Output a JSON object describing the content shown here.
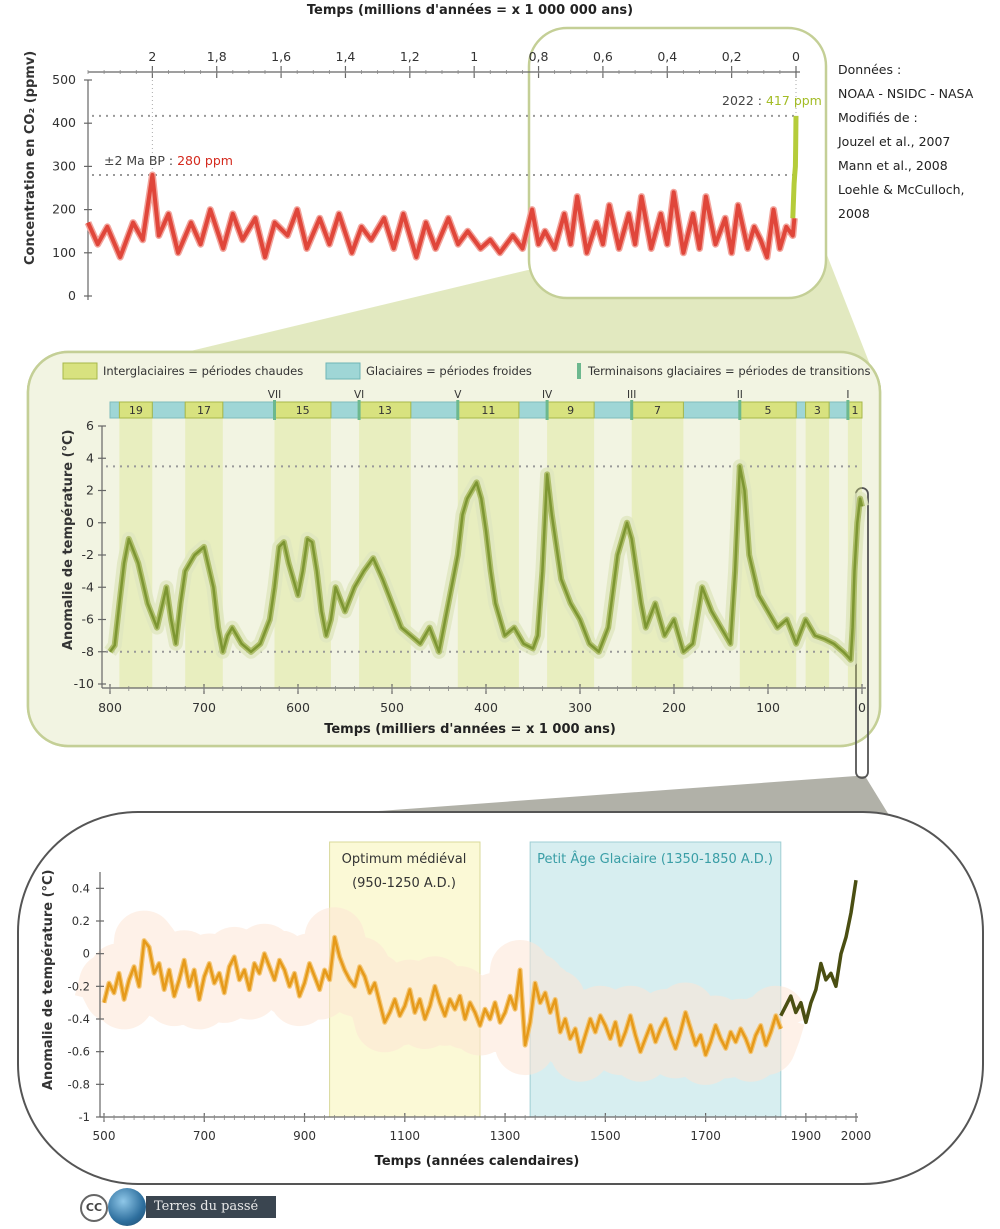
{
  "top_chart": {
    "title": "Temps (millions d'années = x 1 000 000 ans)",
    "ylabel": "Concentration en CO₂ (ppmv)",
    "x_ticks": [
      "2",
      "1,8",
      "1,6",
      "1,4",
      "1,2",
      "1",
      "0,8",
      "0,6",
      "0,4",
      "0,2",
      "0"
    ],
    "y_ticks": [
      "0",
      "100",
      "200",
      "300",
      "400",
      "500"
    ],
    "annotation_2ma_prefix": "±2 Ma BP : ",
    "annotation_2ma_value": "280 ppm",
    "annotation_2022_prefix": "2022 : ",
    "annotation_2022_value": "417 ppm"
  },
  "sources": {
    "line1": "Données :",
    "line2": "NOAA - NSIDC - NASA",
    "line3": "Modifiés de :",
    "line4": "Jouzel et al., 2007",
    "line5": "Mann et al., 2008",
    "line6": "Loehle & McCulloch, 2008"
  },
  "middle_chart": {
    "legend_interglacial": "Interglaciaires = périodes chaudes",
    "legend_glacial": "Glaciaires = périodes froides",
    "legend_terminations": "Terminaisons glaciaires = périodes de transitions",
    "ylabel": "Anomalie de température (°C)",
    "xlabel": "Temps (milliers d'années = x 1 000 ans)",
    "x_ticks": [
      "800",
      "700",
      "600",
      "500",
      "400",
      "300",
      "200",
      "100",
      "0"
    ],
    "y_ticks": [
      "6",
      "4",
      "2",
      "0",
      "-2",
      "-4",
      "-6",
      "-8",
      "-10"
    ],
    "mis_labels": [
      "19",
      "17",
      "15",
      "13",
      "11",
      "9",
      "7",
      "5",
      "3",
      "1"
    ],
    "termination_labels": [
      "VII",
      "VI",
      "V",
      "IV",
      "III",
      "II",
      "I"
    ]
  },
  "bottom_chart": {
    "ylabel": "Anomalie de température (°C)",
    "xlabel": "Temps (années calendaires)",
    "x_ticks": [
      "500",
      "700",
      "900",
      "1100",
      "1300",
      "1500",
      "1700",
      "1900",
      "2000"
    ],
    "y_ticks": [
      "0.4",
      "0.2",
      "0",
      "-0.2",
      "-0.4",
      "-0.6",
      "-0.8",
      "-1"
    ],
    "mwp_line1": "Optimum médiéval",
    "mwp_line2": "(950-1250 A.D.)",
    "lia_label": "Petit Âge Glaciaire (1350-1850 A.D.)"
  },
  "logo": {
    "cc": "CC",
    "text": "Terres du passé"
  },
  "colors": {
    "co2_line": "#e0463a",
    "co2_recent": "#b5cc3a",
    "temp_line": "#7d9632",
    "interglacial_fill": "#d8e27f",
    "glacial_fill": "#9fd6d6",
    "termination": "#6db88e",
    "holocene_line": "#e69a1a",
    "instrumental_line": "#4a4e12",
    "mwp_fill": "#fbf9d6",
    "lia_fill": "#d7eef0",
    "panel_bg": "#f2f4e2",
    "panel_border": "#c4cf96"
  },
  "chart_data": [
    {
      "type": "line",
      "title": "",
      "xlabel": "Temps (millions d'années = x 1 000 000 ans)",
      "ylabel": "Concentration en CO₂ (ppmv)",
      "xlim": [
        2.2,
        0
      ],
      "ylim": [
        0,
        500
      ],
      "series": [
        {
          "x": [
            2.2,
            2.17,
            2.14,
            2.1,
            2.06,
            2.03,
            2.0,
            1.98,
            1.95,
            1.92,
            1.88,
            1.85,
            1.82,
            1.78,
            1.75,
            1.72,
            1.68,
            1.65,
            1.62,
            1.58,
            1.55,
            1.52,
            1.48,
            1.45,
            1.42,
            1.38,
            1.35,
            1.32,
            1.28,
            1.25,
            1.22,
            1.18,
            1.15,
            1.12,
            1.08,
            1.05,
            1.02,
            0.98,
            0.95,
            0.92,
            0.88,
            0.85,
            0.82,
            0.8,
            0.78,
            0.75,
            0.72,
            0.7,
            0.68,
            0.65,
            0.62,
            0.6,
            0.58,
            0.55,
            0.52,
            0.5,
            0.48,
            0.45,
            0.42,
            0.4,
            0.38,
            0.35,
            0.32,
            0.3,
            0.28,
            0.25,
            0.22,
            0.2,
            0.18,
            0.15,
            0.13,
            0.11,
            0.09,
            0.07,
            0.05,
            0.03,
            0.01,
            0.005
          ],
          "y": [
            170,
            120,
            160,
            90,
            170,
            130,
            280,
            140,
            190,
            100,
            170,
            120,
            200,
            110,
            190,
            130,
            180,
            90,
            170,
            140,
            200,
            110,
            180,
            120,
            190,
            100,
            160,
            130,
            180,
            110,
            190,
            90,
            170,
            110,
            180,
            120,
            150,
            110,
            130,
            100,
            140,
            110,
            200,
            120,
            150,
            110,
            190,
            120,
            230,
            100,
            170,
            120,
            210,
            110,
            190,
            120,
            230,
            110,
            190,
            120,
            240,
            100,
            190,
            110,
            230,
            120,
            180,
            100,
            210,
            110,
            160,
            130,
            90,
            200,
            110,
            160,
            140,
            180
          ]
        },
        {
          "x": [
            0.01,
            0.006,
            0.004,
            0.002,
            0.001,
            0.0
          ],
          "y": [
            180,
            260,
            280,
            300,
            350,
            417
          ]
        }
      ]
    },
    {
      "type": "line",
      "title": "",
      "xlabel": "Temps (milliers d'années = x 1 000 ans)",
      "ylabel": "Anomalie de température (°C)",
      "xlim": [
        800,
        0
      ],
      "ylim": [
        -10,
        6
      ],
      "series": [
        {
          "x": [
            800,
            795,
            790,
            785,
            780,
            770,
            760,
            750,
            740,
            735,
            730,
            725,
            720,
            710,
            700,
            690,
            685,
            680,
            675,
            670,
            660,
            650,
            640,
            630,
            625,
            620,
            615,
            610,
            600,
            595,
            590,
            585,
            580,
            575,
            570,
            565,
            560,
            550,
            540,
            530,
            520,
            510,
            500,
            490,
            480,
            470,
            460,
            450,
            440,
            430,
            425,
            420,
            415,
            410,
            405,
            400,
            395,
            390,
            380,
            370,
            360,
            350,
            345,
            340,
            335,
            330,
            320,
            310,
            300,
            290,
            280,
            270,
            260,
            250,
            245,
            240,
            235,
            230,
            220,
            210,
            200,
            190,
            180,
            170,
            160,
            150,
            140,
            135,
            130,
            125,
            120,
            110,
            100,
            90,
            80,
            70,
            60,
            50,
            40,
            30,
            20,
            15,
            12,
            10,
            8,
            5,
            2,
            0
          ],
          "y": [
            -8,
            -7.6,
            -5,
            -2.5,
            -1,
            -2.5,
            -5,
            -6.5,
            -4,
            -6,
            -7.5,
            -5,
            -3,
            -2,
            -1.5,
            -4,
            -6.5,
            -8,
            -7,
            -6.5,
            -7.5,
            -8,
            -7.5,
            -6,
            -4,
            -1.5,
            -1.2,
            -2.5,
            -4.5,
            -3,
            -1,
            -1.2,
            -3,
            -5.5,
            -7,
            -6,
            -4,
            -5.5,
            -4,
            -3,
            -2.2,
            -3.5,
            -5,
            -6.5,
            -7,
            -7.5,
            -6.5,
            -8,
            -5,
            -2,
            0.5,
            1.5,
            2,
            2.5,
            1.5,
            -0.5,
            -3,
            -5,
            -7,
            -6.5,
            -7.5,
            -7.8,
            -7,
            -3,
            3,
            0.5,
            -3.5,
            -5,
            -6,
            -7.5,
            -8,
            -6.5,
            -2,
            0,
            -1,
            -3,
            -5,
            -6.5,
            -5,
            -7,
            -6,
            -8,
            -7.5,
            -4,
            -5.5,
            -6.5,
            -7.5,
            -3,
            3.5,
            2,
            -2,
            -4.5,
            -5.5,
            -6.5,
            -6,
            -7.5,
            -6,
            -7,
            -7.2,
            -7.5,
            -8,
            -8.3,
            -8.5,
            -6.5,
            -3,
            0,
            1.5,
            1
          ]
        }
      ]
    },
    {
      "type": "line",
      "title": "",
      "xlabel": "Temps (années calendaires)",
      "ylabel": "Anomalie de température (°C)",
      "xlim": [
        500,
        2000
      ],
      "ylim": [
        -1,
        0.5
      ],
      "series": [
        {
          "x": [
            500,
            510,
            520,
            530,
            540,
            550,
            560,
            570,
            580,
            590,
            600,
            610,
            620,
            630,
            640,
            650,
            660,
            670,
            680,
            690,
            700,
            710,
            720,
            730,
            740,
            750,
            760,
            770,
            780,
            790,
            800,
            810,
            820,
            830,
            840,
            850,
            860,
            870,
            880,
            890,
            900,
            910,
            920,
            930,
            940,
            950,
            960,
            970,
            980,
            990,
            1000,
            1010,
            1020,
            1030,
            1040,
            1050,
            1060,
            1070,
            1080,
            1090,
            1100,
            1110,
            1120,
            1130,
            1140,
            1150,
            1160,
            1170,
            1180,
            1190,
            1200,
            1210,
            1220,
            1230,
            1240,
            1250,
            1260,
            1270,
            1280,
            1290,
            1300,
            1310,
            1320,
            1330,
            1340,
            1350,
            1360,
            1370,
            1380,
            1390,
            1400,
            1410,
            1420,
            1430,
            1440,
            1450,
            1460,
            1470,
            1480,
            1490,
            1500,
            1510,
            1520,
            1530,
            1540,
            1550,
            1560,
            1570,
            1580,
            1590,
            1600,
            1610,
            1620,
            1630,
            1640,
            1650,
            1660,
            1670,
            1680,
            1690,
            1700,
            1710,
            1720,
            1730,
            1740,
            1750,
            1760,
            1770,
            1780,
            1790,
            1800,
            1810,
            1820,
            1830,
            1840,
            1850
          ],
          "y": [
            -0.3,
            -0.18,
            -0.24,
            -0.12,
            -0.28,
            -0.16,
            -0.08,
            -0.2,
            0.08,
            0.04,
            -0.12,
            -0.06,
            -0.22,
            -0.1,
            -0.26,
            -0.16,
            -0.04,
            -0.2,
            -0.1,
            -0.28,
            -0.14,
            -0.06,
            -0.18,
            -0.12,
            -0.24,
            -0.08,
            -0.02,
            -0.16,
            -0.1,
            -0.22,
            -0.06,
            -0.12,
            0.0,
            -0.08,
            -0.16,
            -0.04,
            -0.1,
            -0.2,
            -0.12,
            -0.26,
            -0.18,
            -0.06,
            -0.14,
            -0.22,
            -0.1,
            -0.16,
            0.1,
            -0.02,
            -0.1,
            -0.16,
            -0.2,
            -0.08,
            -0.14,
            -0.24,
            -0.18,
            -0.3,
            -0.42,
            -0.36,
            -0.28,
            -0.38,
            -0.32,
            -0.22,
            -0.36,
            -0.28,
            -0.4,
            -0.32,
            -0.2,
            -0.3,
            -0.38,
            -0.28,
            -0.34,
            -0.26,
            -0.4,
            -0.3,
            -0.36,
            -0.44,
            -0.34,
            -0.4,
            -0.3,
            -0.42,
            -0.36,
            -0.26,
            -0.34,
            -0.1,
            -0.56,
            -0.42,
            -0.18,
            -0.3,
            -0.24,
            -0.36,
            -0.28,
            -0.48,
            -0.4,
            -0.52,
            -0.46,
            -0.6,
            -0.5,
            -0.4,
            -0.48,
            -0.38,
            -0.44,
            -0.52,
            -0.42,
            -0.56,
            -0.48,
            -0.38,
            -0.5,
            -0.6,
            -0.52,
            -0.44,
            -0.54,
            -0.46,
            -0.4,
            -0.5,
            -0.58,
            -0.48,
            -0.36,
            -0.46,
            -0.56,
            -0.5,
            -0.62,
            -0.54,
            -0.44,
            -0.52,
            -0.58,
            -0.48,
            -0.54,
            -0.46,
            -0.52,
            -0.6,
            -0.5,
            -0.44,
            -0.56,
            -0.48,
            -0.38,
            -0.46
          ]
        },
        {
          "x": [
            1850,
            1860,
            1870,
            1880,
            1890,
            1900,
            1910,
            1920,
            1930,
            1940,
            1950,
            1960,
            1970,
            1980,
            1990,
            2000
          ],
          "y": [
            -0.38,
            -0.32,
            -0.26,
            -0.36,
            -0.3,
            -0.42,
            -0.3,
            -0.22,
            -0.06,
            -0.16,
            -0.12,
            -0.2,
            0.0,
            0.1,
            0.25,
            0.45
          ]
        }
      ]
    }
  ]
}
